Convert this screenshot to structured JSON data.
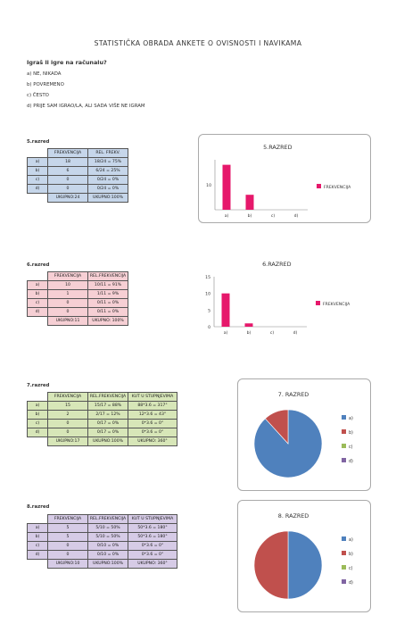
{
  "title": "STATISTIČKA OBRADA ANKETE O OVISNOSTI I NAVIKAMA",
  "question": "Igraš li igre na računalu?",
  "options": [
    "a) NE, NIKADA",
    "b) POVREMENO",
    "c) ČESTO",
    "d) PRIJE SAM IGRAO/LA, ALI SADA VIŠE NE IGRAM"
  ],
  "sections": [
    {
      "label": "5.razred",
      "color": "#c6d6ea",
      "headers": [
        "FREKVENCIJA",
        "REL. FREKV."
      ],
      "rows": [
        {
          "label": "a)",
          "cells": [
            "18",
            "18/24 = 75%"
          ]
        },
        {
          "label": "b)",
          "cells": [
            "6",
            "6/24 = 25%"
          ]
        },
        {
          "label": "c)",
          "cells": [
            "0",
            "0/24 = 0%"
          ]
        },
        {
          "label": "d)",
          "cells": [
            "0",
            "0/24 = 0%"
          ]
        }
      ],
      "total": [
        "UKUPNO:24",
        "UKUPNO:100%"
      ]
    },
    {
      "label": "6.razred",
      "color": "#f6cfd4",
      "headers": [
        "FREKVENCIJA",
        "REL.FREKVENCIJA"
      ],
      "rows": [
        {
          "label": "a)",
          "cells": [
            "10",
            "10/11 = 91%"
          ]
        },
        {
          "label": "b)",
          "cells": [
            "1",
            "1/11 = 9%"
          ]
        },
        {
          "label": "c)",
          "cells": [
            "0",
            "0/11 = 0%"
          ]
        },
        {
          "label": "d)",
          "cells": [
            "0",
            "0/11 = 0%"
          ]
        }
      ],
      "total": [
        "UKUPNO:11",
        "UKUPNO: 100%"
      ]
    },
    {
      "label": "7.razred",
      "color": "#d7e6b8",
      "headers": [
        "FREKVENCIJA",
        "REL.FREKVENCIJA",
        "KUT U STUPNJEVIMA"
      ],
      "rows": [
        {
          "label": "a)",
          "cells": [
            "15",
            "15/17 = 88%",
            "88*3.6 = 317°"
          ]
        },
        {
          "label": "b)",
          "cells": [
            "2",
            "2/17 = 12%",
            "12*3.6 = 43°"
          ]
        },
        {
          "label": "c)",
          "cells": [
            "0",
            "0/17 = 0%",
            "0*3.6 = 0°"
          ]
        },
        {
          "label": "d)",
          "cells": [
            "0",
            "0/17 = 0%",
            "0*3.6 = 0°"
          ]
        }
      ],
      "total": [
        "UKUPNO:17",
        "UKUPNO:100%",
        "UKUPNO: 360°"
      ]
    },
    {
      "label": "8.razred",
      "color": "#d6cbe6",
      "headers": [
        "FREKVENCIJA",
        "REL.FREKVENCIJA",
        "KUT U STUPNJEVIMA"
      ],
      "rows": [
        {
          "label": "a)",
          "cells": [
            "5",
            "5/10 = 50%",
            "50*3.6 = 180°"
          ]
        },
        {
          "label": "b)",
          "cells": [
            "5",
            "5/10 = 50%",
            "50*3.6 = 180°"
          ]
        },
        {
          "label": "c)",
          "cells": [
            "0",
            "0/10 = 0%",
            "0*3.6 = 0°"
          ]
        },
        {
          "label": "d)",
          "cells": [
            "0",
            "0/10 = 0%",
            "0*3.6 = 0°"
          ]
        }
      ],
      "total": [
        "UKUPNO:10",
        "UKUPNO:100%",
        "UKUPNO: 360°"
      ]
    }
  ],
  "chart_data": [
    {
      "type": "bar",
      "title": "5.RAZRED",
      "categories": [
        "a)",
        "b)",
        "c)",
        "d)"
      ],
      "values": [
        18,
        6,
        0,
        0
      ],
      "ylim": [
        0,
        20
      ],
      "yticks": [
        "",
        "10",
        ""
      ],
      "legend": [
        "FREKVENCIJA"
      ],
      "color": "#e6186b",
      "legend_position": "right"
    },
    {
      "type": "bar",
      "title": "6.RAZRED",
      "categories": [
        "a)",
        "b)",
        "c)",
        "d)"
      ],
      "values": [
        10,
        1,
        0,
        0
      ],
      "ylim": [
        0,
        15
      ],
      "yticks": [
        "0",
        "5",
        "10",
        "15"
      ],
      "legend": [
        "FREKVENCIJA"
      ],
      "color": "#e6186b",
      "legend_position": "right"
    },
    {
      "type": "pie",
      "title": "7. RAZRED",
      "categories": [
        "a)",
        "b)",
        "c)",
        "d)"
      ],
      "values": [
        15,
        2,
        0,
        0
      ],
      "colors": [
        "#4f81bd",
        "#c0504d",
        "#9bbb59",
        "#8064a2"
      ],
      "legend_position": "right"
    },
    {
      "type": "pie",
      "title": "8. RAZRED",
      "categories": [
        "a)",
        "b)",
        "c)",
        "d)"
      ],
      "values": [
        5,
        5,
        0,
        0
      ],
      "colors": [
        "#4f81bd",
        "#c0504d",
        "#9bbb59",
        "#8064a2"
      ],
      "legend_position": "right"
    }
  ]
}
